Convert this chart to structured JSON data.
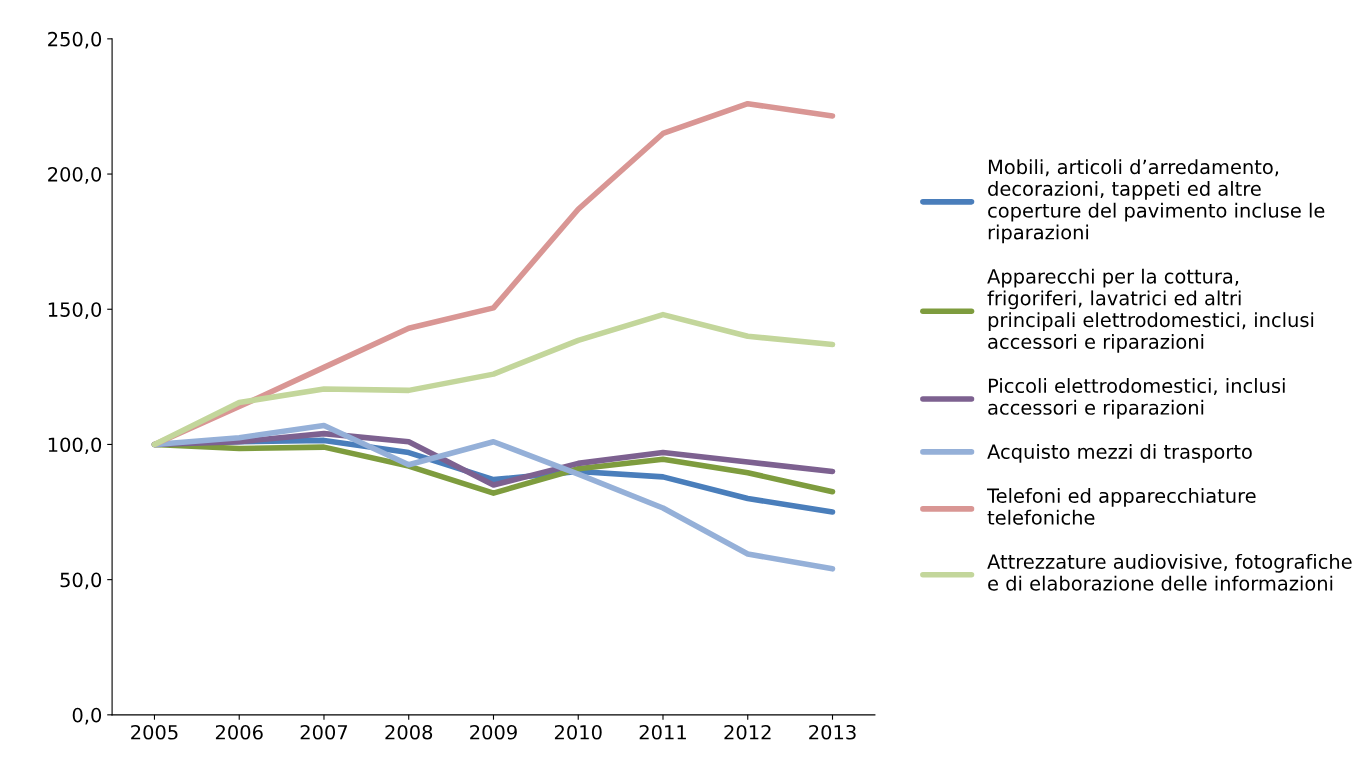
{
  "chart_data": {
    "type": "line",
    "categories": [
      "2005",
      "2006",
      "2007",
      "2008",
      "2009",
      "2010",
      "2011",
      "2012",
      "2013"
    ],
    "series": [
      {
        "name": "Mobili, articoli d’arredamento, decorazioni, tappeti ed altre coperture del pavimento incluse le riparazioni",
        "color": "#4a7ebb",
        "values": [
          100,
          101,
          101.5,
          97,
          87,
          90,
          88,
          80,
          75
        ]
      },
      {
        "name": "Apparecchi per la cottura, frigoriferi, lavatrici ed altri principali elettrodomestici, inclusi accessori e riparazioni",
        "color": "#7e9c3e",
        "values": [
          100,
          98.5,
          99,
          92,
          82,
          91,
          94.5,
          89.5,
          82.5
        ]
      },
      {
        "name": "Piccoli elettrodomestici, inclusi accessori e riparazioni",
        "color": "#7d6190",
        "values": [
          100,
          101,
          104,
          101,
          85,
          93,
          97,
          93.5,
          90
        ]
      },
      {
        "name": "Acquisto mezzi di trasporto",
        "color": "#95b0d8",
        "values": [
          100,
          102.5,
          107,
          92.5,
          101,
          89,
          76.5,
          59.5,
          54
        ]
      },
      {
        "name": "Telefoni ed apparecchiature telefoniche",
        "color": "#d99694",
        "values": [
          100,
          114,
          128.5,
          143,
          150.5,
          187,
          215,
          226,
          221.5
        ]
      },
      {
        "name": "Attrezzature audiovisive, fotografiche e di elaborazione delle informazioni",
        "color": "#c3d69b",
        "values": [
          100,
          115.5,
          120.5,
          120,
          126,
          138.5,
          148,
          140,
          137
        ]
      }
    ],
    "ylim": [
      0,
      250
    ],
    "yticks": [
      {
        "value": 0,
        "label": "0,0"
      },
      {
        "value": 50,
        "label": "50,0"
      },
      {
        "value": 100,
        "label": "100,0"
      },
      {
        "value": 150,
        "label": "150,0"
      },
      {
        "value": 200,
        "label": "200,0"
      },
      {
        "value": 250,
        "label": "250,0"
      }
    ],
    "grid": false,
    "legend": "right",
    "marker": "none",
    "line_style": "solid"
  }
}
